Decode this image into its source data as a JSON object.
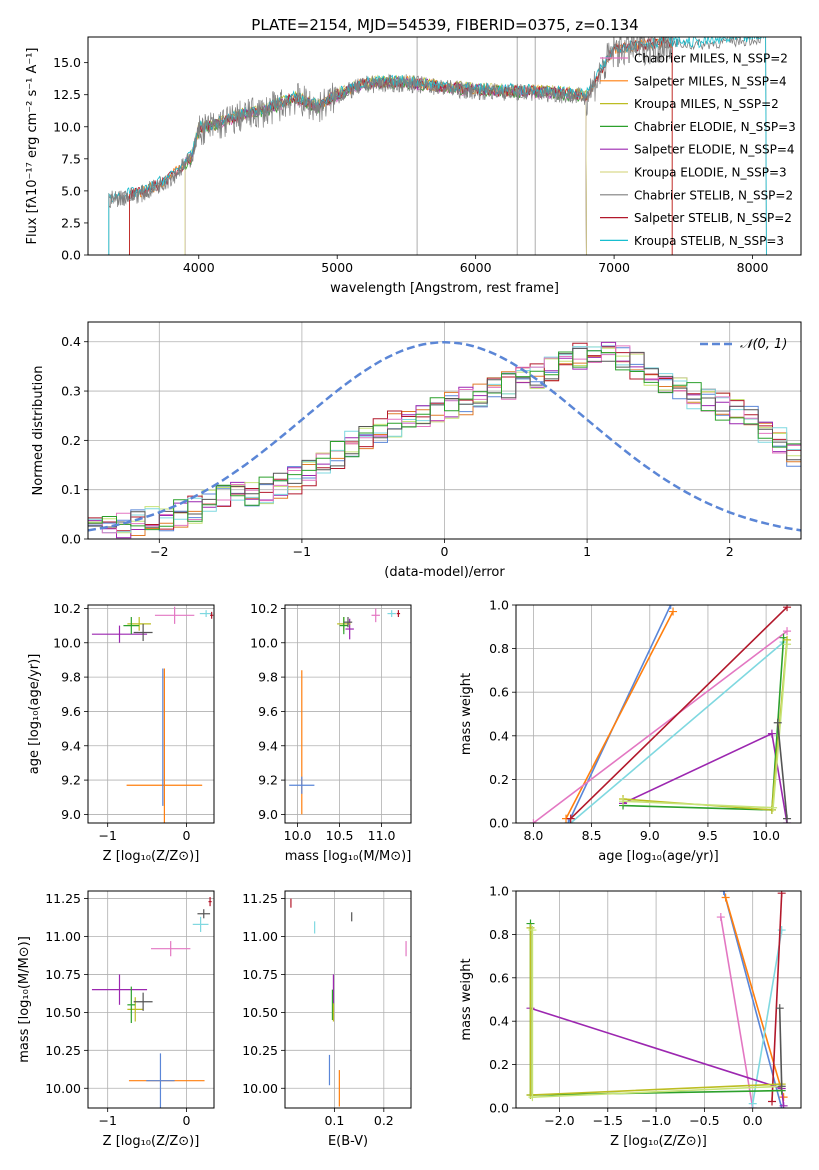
{
  "figure": {
    "title": "PLATE=2154, MJD=54539, FIBERID=0375, z=0.134"
  },
  "colors": {
    "models": [
      "#e377c2",
      "#ff7f0e",
      "#bcbd22",
      "#2ca02c",
      "#9c27b0",
      "#dbdb8d",
      "#7f7f7f",
      "#b2182b",
      "#17becf"
    ],
    "blue": "#5a86d8",
    "orange": "#e07b2a",
    "pink": "#e377c2",
    "purple": "#9c27b0",
    "green": "#2ca02c",
    "olive": "#bcbd22",
    "lime": "#c6e377",
    "gray": "#555555",
    "darkred": "#b2182b",
    "cyan": "#7fd8e0",
    "observed": "#808080",
    "gauss": "#5b86d6"
  },
  "chart_data": [
    {
      "id": "spectrum",
      "type": "line",
      "xlabel": "wavelength [Angstrom, rest frame]",
      "ylabel": "Flux [fλ10⁻¹⁷ erg cm⁻² s⁻¹ A⁻¹]",
      "xlim": [
        3200,
        8350
      ],
      "ylim": [
        0,
        17
      ],
      "xticks": [
        "4000",
        "5000",
        "6000",
        "7000",
        "8000"
      ],
      "xtick_values": [
        4000,
        5000,
        6000,
        7000,
        8000
      ],
      "yticks": [
        "0.0",
        "2.5",
        "5.0",
        "7.5",
        "10.0",
        "12.5",
        "15.0"
      ],
      "ytick_values": [
        0,
        2.5,
        5,
        7.5,
        10,
        12.5,
        15
      ],
      "vlines": [
        5577,
        6300,
        6430
      ],
      "legend": [
        "Chabrier MILES, N_SSP=2",
        "Salpeter MILES, N_SSP=4",
        "Kroupa MILES, N_SSP=2",
        "Chabrier ELODIE, N_SSP=3",
        "Salpeter ELODIE, N_SSP=4",
        "Kroupa ELODIE, N_SSP=3",
        "Chabrier STELIB, N_SSP=2",
        "Salpeter STELIB, N_SSP=2",
        "Kroupa STELIB, N_SSP=3"
      ],
      "legend_colors": [
        "#e377c2",
        "#ff7f0e",
        "#bcbd22",
        "#2ca02c",
        "#9c27b0",
        "#dbdb8d",
        "#7f7f7f",
        "#b2182b",
        "#17becf"
      ],
      "continuum": {
        "x": [
          3350,
          3600,
          3800,
          3950,
          4000,
          4100,
          4300,
          4500,
          4700,
          4860,
          5000,
          5200,
          5500,
          5800,
          6000,
          6300,
          6560,
          6800,
          7000,
          7200,
          7400,
          7600,
          8000,
          8100
        ],
        "y": [
          4.3,
          4.8,
          6.0,
          7.6,
          9.8,
          10.0,
          10.8,
          11.3,
          12.2,
          11.5,
          12.4,
          13.3,
          13.4,
          13.0,
          12.8,
          12.7,
          12.6,
          12.3,
          16.0,
          16.3,
          16.5,
          16.4,
          16.8,
          17.0
        ]
      },
      "model_ranges": [
        [
          3900,
          6800
        ],
        [
          3500,
          7420
        ],
        [
          3900,
          6800
        ],
        [
          3900,
          6800
        ],
        [
          3900,
          6800
        ],
        [
          3900,
          6800
        ],
        [
          3350,
          8100
        ],
        [
          3500,
          7420
        ],
        [
          3350,
          8100
        ]
      ]
    },
    {
      "id": "residual-histogram",
      "type": "line",
      "xlabel": "(data-model)/error",
      "ylabel": "Normed distribution",
      "xlim": [
        -2.5,
        2.5
      ],
      "ylim": [
        0,
        0.44
      ],
      "xticks": [
        "−2",
        "−1",
        "0",
        "1",
        "2"
      ],
      "xtick_values": [
        -2,
        -1,
        0,
        1,
        2
      ],
      "yticks": [
        "0.0",
        "0.1",
        "0.2",
        "0.3",
        "0.4"
      ],
      "ytick_values": [
        0,
        0.1,
        0.2,
        0.3,
        0.4
      ],
      "legend": [
        "𝒩(0, 1)"
      ],
      "bin_edges_start": -2.5,
      "bin_width": 0.1,
      "base_histogram": [
        0.02,
        0.025,
        0.03,
        0.035,
        0.04,
        0.045,
        0.05,
        0.06,
        0.07,
        0.08,
        0.09,
        0.095,
        0.1,
        0.11,
        0.12,
        0.13,
        0.15,
        0.17,
        0.19,
        0.21,
        0.22,
        0.23,
        0.24,
        0.25,
        0.26,
        0.27,
        0.28,
        0.29,
        0.3,
        0.31,
        0.32,
        0.33,
        0.34,
        0.35,
        0.37,
        0.38,
        0.38,
        0.37,
        0.35,
        0.33,
        0.32,
        0.3,
        0.29,
        0.28,
        0.27,
        0.26,
        0.24,
        0.22,
        0.2,
        0.17
      ]
    },
    {
      "id": "age-vs-Z",
      "type": "scatter",
      "xlabel": "Z [log₁₀(Z/Z⊙)]",
      "ylabel": "age  [log₁₀(age/yr)]",
      "xlim": [
        -1.25,
        0.35
      ],
      "ylim": [
        8.95,
        10.22
      ],
      "xticks": [
        "−1",
        "0"
      ],
      "xtick_values": [
        -1,
        0
      ],
      "yticks": [
        "9.0",
        "9.2",
        "9.4",
        "9.6",
        "9.8",
        "10.0",
        "10.2"
      ],
      "ytick_values": [
        9.0,
        9.2,
        9.4,
        9.6,
        9.8,
        10.0,
        10.2
      ],
      "points": [
        {
          "x": -0.28,
          "y": 9.17,
          "xerr": 0.48,
          "yerr": 0.68,
          "c": "#ff7f0e"
        },
        {
          "x": -0.3,
          "y": 9.45,
          "xerr": 0.0,
          "yerr": 0.4,
          "c": "#5a86d8"
        },
        {
          "x": -0.85,
          "y": 10.05,
          "xerr": 0.35,
          "yerr": 0.05,
          "c": "#9c27b0"
        },
        {
          "x": -0.6,
          "y": 10.11,
          "xerr": 0.15,
          "yerr": 0.04,
          "c": "#bcbd22"
        },
        {
          "x": -0.7,
          "y": 10.1,
          "xerr": 0.1,
          "yerr": 0.05,
          "c": "#2ca02c"
        },
        {
          "x": -0.55,
          "y": 10.06,
          "xerr": 0.12,
          "yerr": 0.05,
          "c": "#555555"
        },
        {
          "x": -0.15,
          "y": 10.16,
          "xerr": 0.25,
          "yerr": 0.05,
          "c": "#e377c2"
        },
        {
          "x": 0.25,
          "y": 10.17,
          "xerr": 0.08,
          "yerr": 0.02,
          "c": "#7fd8e0"
        },
        {
          "x": 0.32,
          "y": 10.16,
          "xerr": 0.02,
          "yerr": 0.02,
          "c": "#b2182b"
        }
      ]
    },
    {
      "id": "age-vs-mass",
      "type": "scatter",
      "xlabel": "mass [log₁₀(M/M⊙)]",
      "ylabel": "",
      "xlim": [
        9.85,
        11.35
      ],
      "ylim": [
        8.95,
        10.22
      ],
      "xticks": [
        "10.0",
        "10.5",
        "11.0"
      ],
      "xtick_values": [
        10.0,
        10.5,
        11.0
      ],
      "yticks": [
        "9.0",
        "9.2",
        "9.4",
        "9.6",
        "9.8",
        "10.0",
        "10.2"
      ],
      "ytick_values": [
        9.0,
        9.2,
        9.4,
        9.6,
        9.8,
        10.0,
        10.2
      ],
      "points": [
        {
          "x": 10.05,
          "y": 9.42,
          "xerr": 0.0,
          "yerr": 0.42,
          "c": "#ff7f0e"
        },
        {
          "x": 10.05,
          "y": 9.17,
          "xerr": 0.15,
          "yerr": 0.05,
          "c": "#5a86d8"
        },
        {
          "x": 10.62,
          "y": 10.08,
          "xerr": 0.05,
          "yerr": 0.06,
          "c": "#9c27b0"
        },
        {
          "x": 10.55,
          "y": 10.11,
          "xerr": 0.08,
          "yerr": 0.04,
          "c": "#bcbd22"
        },
        {
          "x": 10.55,
          "y": 10.1,
          "xerr": 0.05,
          "yerr": 0.05,
          "c": "#2ca02c"
        },
        {
          "x": 10.6,
          "y": 10.12,
          "xerr": 0.05,
          "yerr": 0.03,
          "c": "#555555"
        },
        {
          "x": 10.93,
          "y": 10.16,
          "xerr": 0.05,
          "yerr": 0.04,
          "c": "#e377c2"
        },
        {
          "x": 11.12,
          "y": 10.17,
          "xerr": 0.05,
          "yerr": 0.02,
          "c": "#7fd8e0"
        },
        {
          "x": 11.2,
          "y": 10.17,
          "xerr": 0.02,
          "yerr": 0.02,
          "c": "#b2182b"
        }
      ]
    },
    {
      "id": "massweight-vs-age",
      "type": "line",
      "xlabel": "age  [log₁₀(age/yr)]",
      "ylabel": "mass weight",
      "xlim": [
        7.85,
        10.3
      ],
      "ylim": [
        0,
        1
      ],
      "xticks": [
        "8.0",
        "8.5",
        "9.0",
        "9.5",
        "10.0"
      ],
      "xtick_values": [
        8.0,
        8.5,
        9.0,
        9.5,
        10.0
      ],
      "yticks": [
        "0.0",
        "0.2",
        "0.4",
        "0.6",
        "0.8",
        "1.0"
      ],
      "ytick_values": [
        0,
        0.2,
        0.4,
        0.6,
        0.8,
        1.0
      ],
      "series": [
        {
          "c": "#5a86d8",
          "x": [
            8.3,
            9.18
          ],
          "y": [
            0.0,
            1.0
          ]
        },
        {
          "c": "#ff7f0e",
          "x": [
            8.28,
            9.2
          ],
          "y": [
            0.02,
            0.97
          ]
        },
        {
          "c": "#e377c2",
          "x": [
            8.0,
            10.18
          ],
          "y": [
            0.0,
            0.88
          ]
        },
        {
          "c": "#7fd8e0",
          "x": [
            8.32,
            10.15
          ],
          "y": [
            0.0,
            0.83
          ]
        },
        {
          "c": "#b2182b",
          "x": [
            8.32,
            10.18
          ],
          "y": [
            0.02,
            0.99
          ]
        },
        {
          "c": "#9c27b0",
          "x": [
            8.77,
            10.05,
            10.18
          ],
          "y": [
            0.09,
            0.41,
            0.0
          ]
        },
        {
          "c": "#2ca02c",
          "x": [
            8.77,
            10.05,
            10.15
          ],
          "y": [
            0.08,
            0.06,
            0.85
          ]
        },
        {
          "c": "#bcbd22",
          "x": [
            8.77,
            10.05,
            10.18
          ],
          "y": [
            0.11,
            0.06,
            0.84
          ]
        },
        {
          "c": "#c6e377",
          "x": [
            8.77,
            10.06,
            10.18
          ],
          "y": [
            0.1,
            0.07,
            0.82
          ]
        },
        {
          "c": "#555555",
          "x": [
            10.1,
            10.18
          ],
          "y": [
            0.46,
            0.02
          ]
        }
      ]
    },
    {
      "id": "mass-vs-Z",
      "type": "scatter",
      "xlabel": "Z [log₁₀(Z/Z⊙)]",
      "ylabel": "mass [log₁₀(M/M⊙)]",
      "xlim": [
        -1.25,
        0.35
      ],
      "ylim": [
        9.87,
        11.3
      ],
      "xticks": [
        "−1",
        "0"
      ],
      "xtick_values": [
        -1,
        0
      ],
      "yticks": [
        "10.00",
        "10.25",
        "10.50",
        "10.75",
        "11.00",
        "11.25"
      ],
      "ytick_values": [
        10.0,
        10.25,
        10.5,
        10.75,
        11.0,
        11.25
      ],
      "points": [
        {
          "x": -0.25,
          "y": 10.05,
          "xerr": 0.48,
          "yerr": 0.0,
          "c": "#ff7f0e"
        },
        {
          "x": -0.33,
          "y": 10.05,
          "xerr": 0.18,
          "yerr": 0.18,
          "c": "#5a86d8"
        },
        {
          "x": -0.85,
          "y": 10.65,
          "xerr": 0.35,
          "yerr": 0.1,
          "c": "#9c27b0"
        },
        {
          "x": -0.65,
          "y": 10.52,
          "xerr": 0.1,
          "yerr": 0.08,
          "c": "#bcbd22"
        },
        {
          "x": -0.7,
          "y": 10.55,
          "xerr": 0.05,
          "yerr": 0.12,
          "c": "#2ca02c"
        },
        {
          "x": -0.55,
          "y": 10.57,
          "xerr": 0.12,
          "yerr": 0.06,
          "c": "#555555"
        },
        {
          "x": -0.2,
          "y": 10.92,
          "xerr": 0.25,
          "yerr": 0.05,
          "c": "#e377c2"
        },
        {
          "x": 0.18,
          "y": 11.08,
          "xerr": 0.1,
          "yerr": 0.05,
          "c": "#7fd8e0"
        },
        {
          "x": 0.22,
          "y": 11.15,
          "xerr": 0.08,
          "yerr": 0.03,
          "c": "#555555"
        },
        {
          "x": 0.3,
          "y": 11.23,
          "xerr": 0.02,
          "yerr": 0.03,
          "c": "#b2182b"
        }
      ]
    },
    {
      "id": "mass-vs-EBV",
      "type": "scatter",
      "xlabel": "E(B-V)",
      "ylabel": "",
      "xlim": [
        0.0,
        0.255
      ],
      "ylim": [
        9.87,
        11.3
      ],
      "xticks": [
        "0.1",
        "0.2"
      ],
      "xtick_values": [
        0.1,
        0.2
      ],
      "yticks": [
        "10.00",
        "10.25",
        "10.50",
        "10.75",
        "11.00",
        "11.25"
      ],
      "ytick_values": [
        10.0,
        10.25,
        10.5,
        10.75,
        11.0,
        11.25
      ],
      "points": [
        {
          "x": 0.11,
          "y": 10.0,
          "xerr": 0.0,
          "yerr": 0.12,
          "c": "#ff7f0e"
        },
        {
          "x": 0.09,
          "y": 10.12,
          "xerr": 0.0,
          "yerr": 0.1,
          "c": "#5a86d8"
        },
        {
          "x": 0.098,
          "y": 10.65,
          "xerr": 0.0,
          "yerr": 0.1,
          "c": "#9c27b0"
        },
        {
          "x": 0.096,
          "y": 10.55,
          "xerr": 0.0,
          "yerr": 0.1,
          "c": "#2ca02c"
        },
        {
          "x": 0.098,
          "y": 10.5,
          "xerr": 0.0,
          "yerr": 0.06,
          "c": "#bcbd22"
        },
        {
          "x": 0.135,
          "y": 11.13,
          "xerr": 0.0,
          "yerr": 0.03,
          "c": "#555555"
        },
        {
          "x": 0.245,
          "y": 10.92,
          "xerr": 0.0,
          "yerr": 0.05,
          "c": "#e377c2"
        },
        {
          "x": 0.06,
          "y": 11.06,
          "xerr": 0.0,
          "yerr": 0.04,
          "c": "#7fd8e0"
        },
        {
          "x": 0.012,
          "y": 11.22,
          "xerr": 0.0,
          "yerr": 0.03,
          "c": "#b2182b"
        }
      ]
    },
    {
      "id": "massweight-vs-Z",
      "type": "line",
      "xlabel": "Z [log₁₀(Z/Z⊙)]",
      "ylabel": "mass weight",
      "xlim": [
        -2.45,
        0.5
      ],
      "ylim": [
        0,
        1
      ],
      "xticks": [
        "−2.0",
        "−1.5",
        "−1.0",
        "−0.5",
        "0.0"
      ],
      "xtick_values": [
        -2.0,
        -1.5,
        -1.0,
        -0.5,
        0.0
      ],
      "yticks": [
        "0.0",
        "0.2",
        "0.4",
        "0.6",
        "0.8",
        "1.0"
      ],
      "ytick_values": [
        0,
        0.2,
        0.4,
        0.6,
        0.8,
        1.0
      ],
      "series": [
        {
          "c": "#5a86d8",
          "x": [
            -0.3,
            0.3
          ],
          "y": [
            1.0,
            0.0
          ]
        },
        {
          "c": "#ff7f0e",
          "x": [
            -0.28,
            0.32
          ],
          "y": [
            0.97,
            0.05
          ]
        },
        {
          "c": "#e377c2",
          "x": [
            -0.33,
            0.0
          ],
          "y": [
            0.88,
            0.0
          ]
        },
        {
          "c": "#7fd8e0",
          "x": [
            0.0,
            0.3
          ],
          "y": [
            0.02,
            0.82
          ]
        },
        {
          "c": "#b2182b",
          "x": [
            0.2,
            0.3
          ],
          "y": [
            0.03,
            0.99
          ]
        },
        {
          "c": "#9c27b0",
          "x": [
            -2.3,
            0.3,
            0.32
          ],
          "y": [
            0.46,
            0.09,
            0.01
          ]
        },
        {
          "c": "#2ca02c",
          "x": [
            -2.3,
            -2.3,
            0.3
          ],
          "y": [
            0.85,
            0.06,
            0.08
          ]
        },
        {
          "c": "#bcbd22",
          "x": [
            -2.3,
            -2.3,
            0.3
          ],
          "y": [
            0.83,
            0.06,
            0.11
          ]
        },
        {
          "c": "#c6e377",
          "x": [
            -2.28,
            -2.28,
            0.3
          ],
          "y": [
            0.82,
            0.05,
            0.1
          ]
        },
        {
          "c": "#555555",
          "x": [
            0.28,
            0.3
          ],
          "y": [
            0.46,
            0.1
          ]
        }
      ]
    }
  ]
}
